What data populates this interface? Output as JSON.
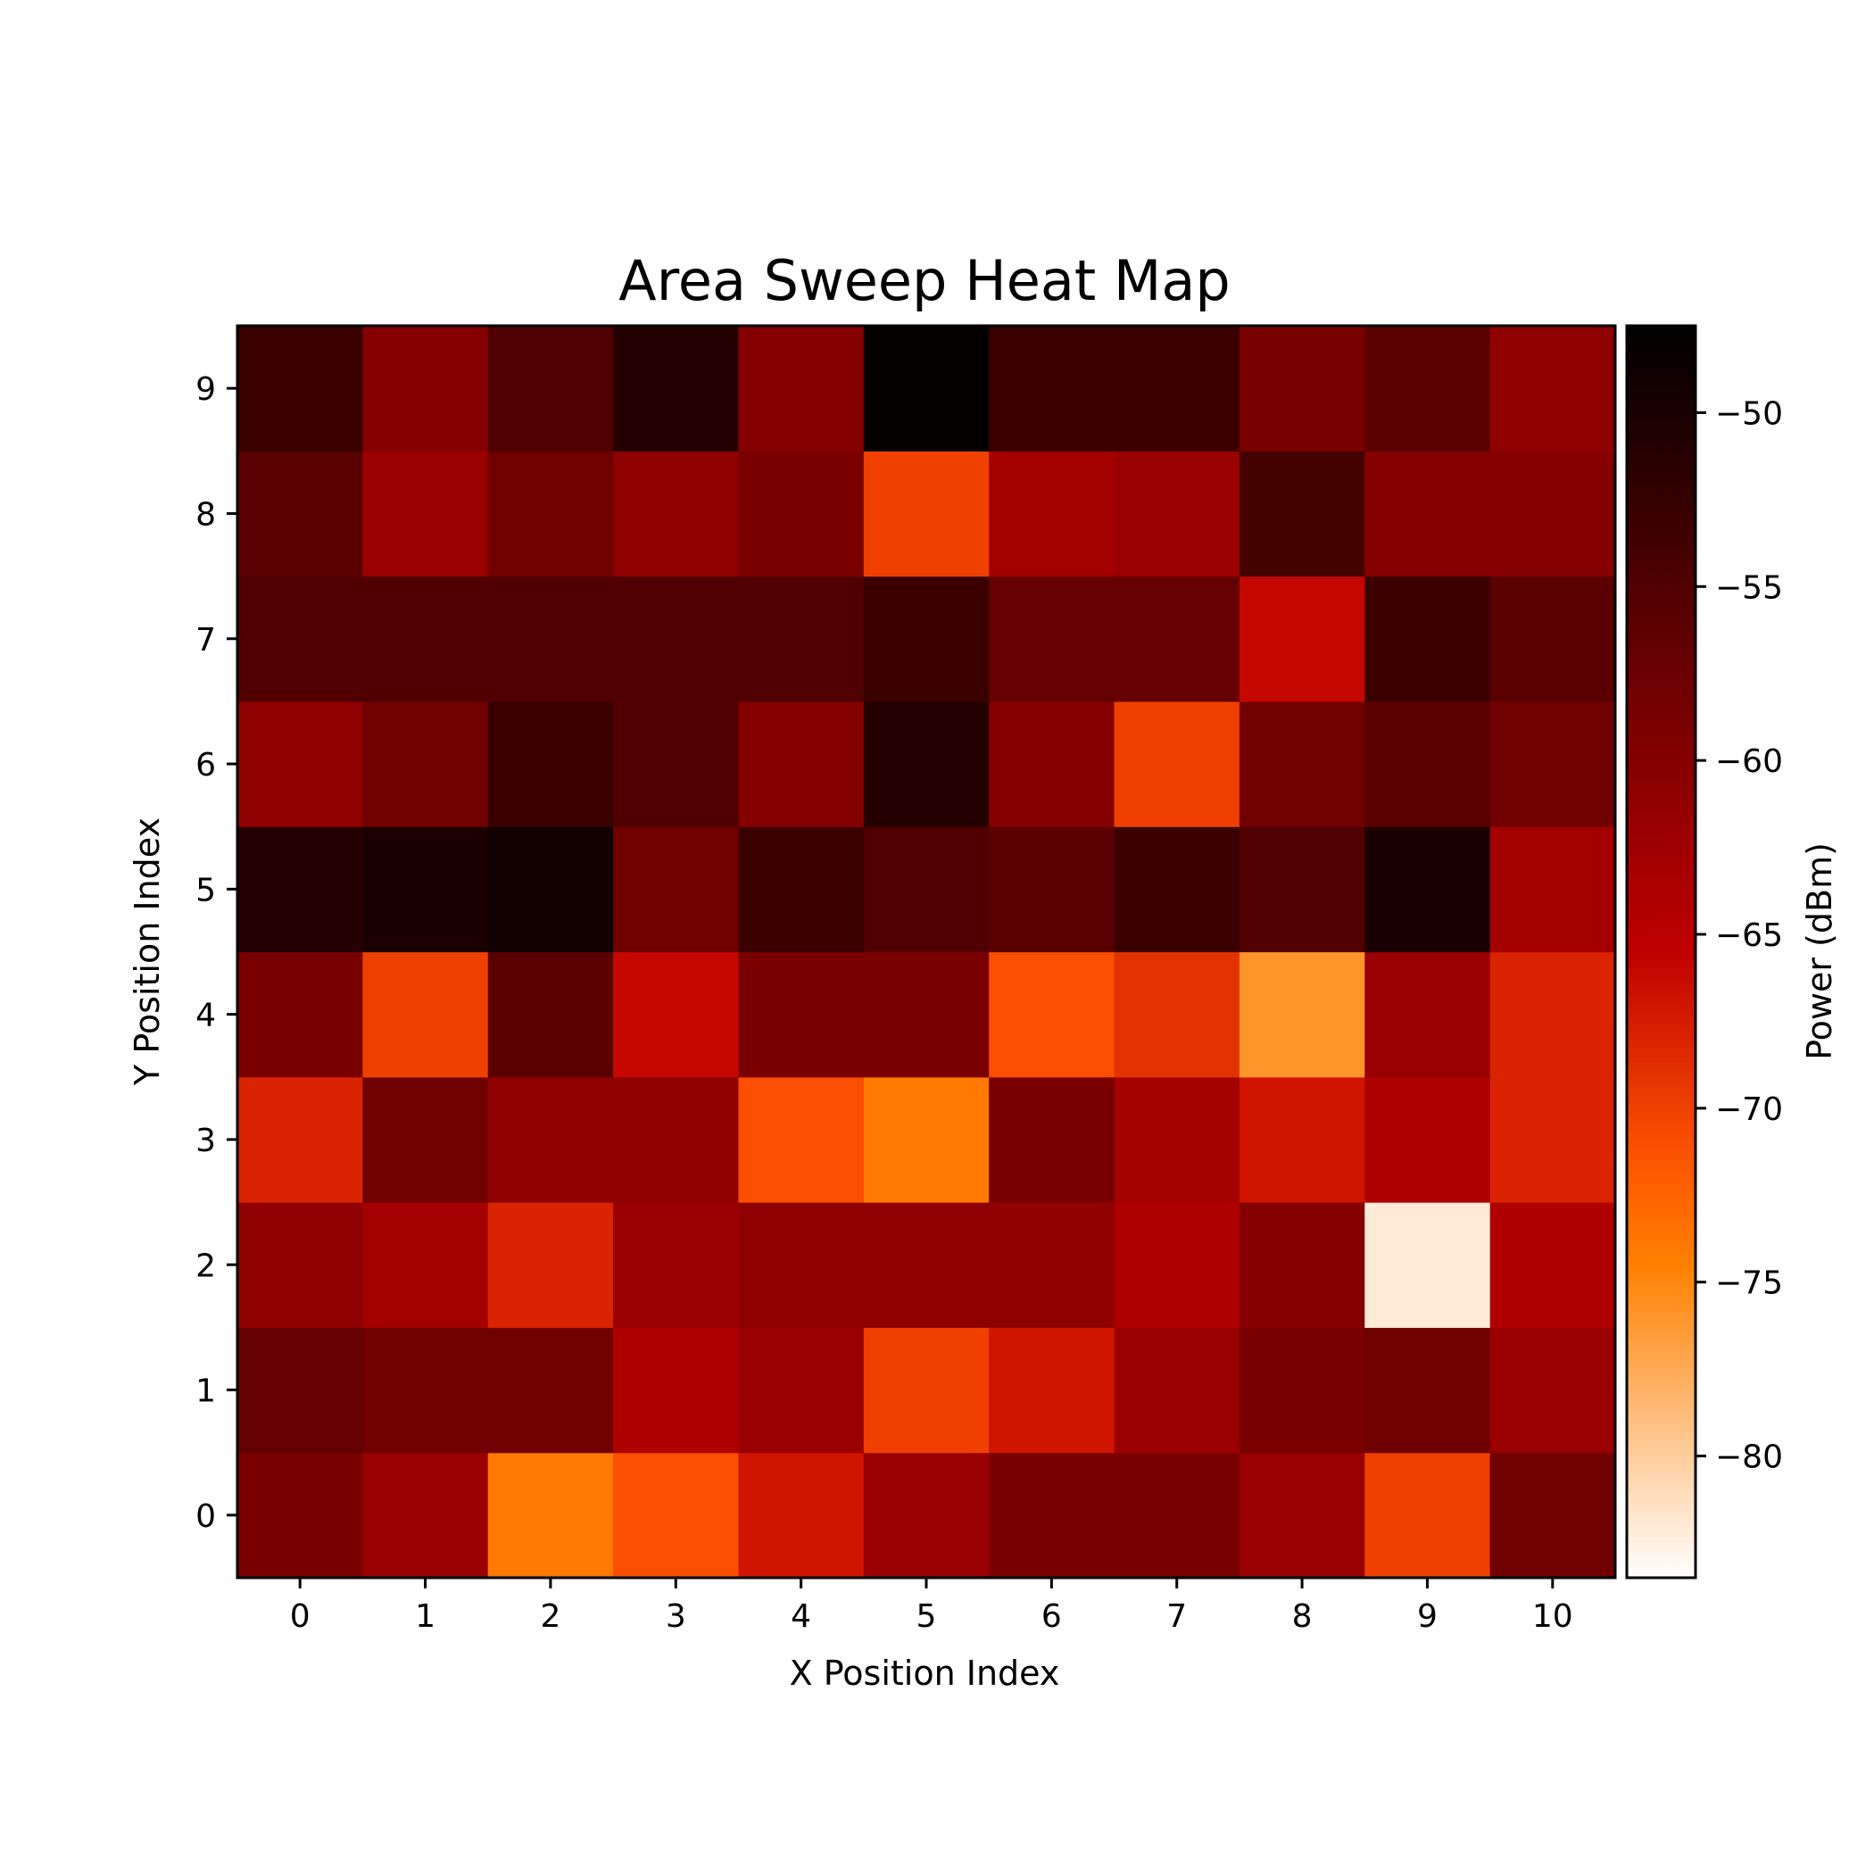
{
  "chart_data": {
    "type": "heatmap",
    "title": "Area Sweep Heat Map",
    "xlabel": "X Position Index",
    "ylabel": "Y Position Index",
    "colorbar_label": "Power (dBm)",
    "colormap": "gist_heat_reversed",
    "vmin": -83.5,
    "vmax": -47.5,
    "x": [
      0,
      1,
      2,
      3,
      4,
      5,
      6,
      7,
      8,
      9,
      10
    ],
    "y": [
      0,
      1,
      2,
      3,
      4,
      5,
      6,
      7,
      8,
      9
    ],
    "x_tick_labels": [
      "0",
      "1",
      "2",
      "3",
      "4",
      "5",
      "6",
      "7",
      "8",
      "9",
      "10"
    ],
    "y_tick_labels": [
      "0",
      "1",
      "2",
      "3",
      "4",
      "5",
      "6",
      "7",
      "8",
      "9"
    ],
    "colorbar_ticks": [
      -50,
      -55,
      -60,
      -65,
      -70,
      -75,
      -80
    ],
    "colorbar_tick_labels": [
      "−50",
      "−55",
      "−60",
      "−65",
      "−70",
      "−75",
      "−80"
    ],
    "values": [
      [
        -59,
        -62,
        -74,
        -71,
        -67,
        -62,
        -59,
        -59,
        -62,
        -70,
        -58
      ],
      [
        -57,
        -58,
        -58,
        -64,
        -62,
        -70,
        -67,
        -62,
        -59,
        -58,
        -62
      ],
      [
        -61,
        -63,
        -68,
        -62,
        -61,
        -61,
        -61,
        -64,
        -60,
        -82,
        -64
      ],
      [
        -68,
        -58,
        -61,
        -61,
        -71,
        -74,
        -59,
        -63,
        -67,
        -64,
        -68
      ],
      [
        -59,
        -70,
        -56,
        -66,
        -59,
        -59,
        -71,
        -69,
        -76,
        -62,
        -68
      ],
      [
        -51,
        -50,
        -49,
        -58,
        -53,
        -55,
        -56,
        -53,
        -55,
        -50,
        -63
      ],
      [
        -61,
        -58,
        -53,
        -55,
        -60,
        -51,
        -60,
        -70,
        -58,
        -56,
        -58
      ],
      [
        -55,
        -55,
        -55,
        -55,
        -55,
        -53,
        -57,
        -57,
        -66,
        -53,
        -56
      ],
      [
        -56,
        -62,
        -58,
        -61,
        -59,
        -70,
        -63,
        -62,
        -54,
        -60,
        -60
      ],
      [
        -53,
        -60,
        -55,
        -51,
        -60,
        -48,
        -53,
        -53,
        -59,
        -56,
        -61
      ]
    ]
  }
}
